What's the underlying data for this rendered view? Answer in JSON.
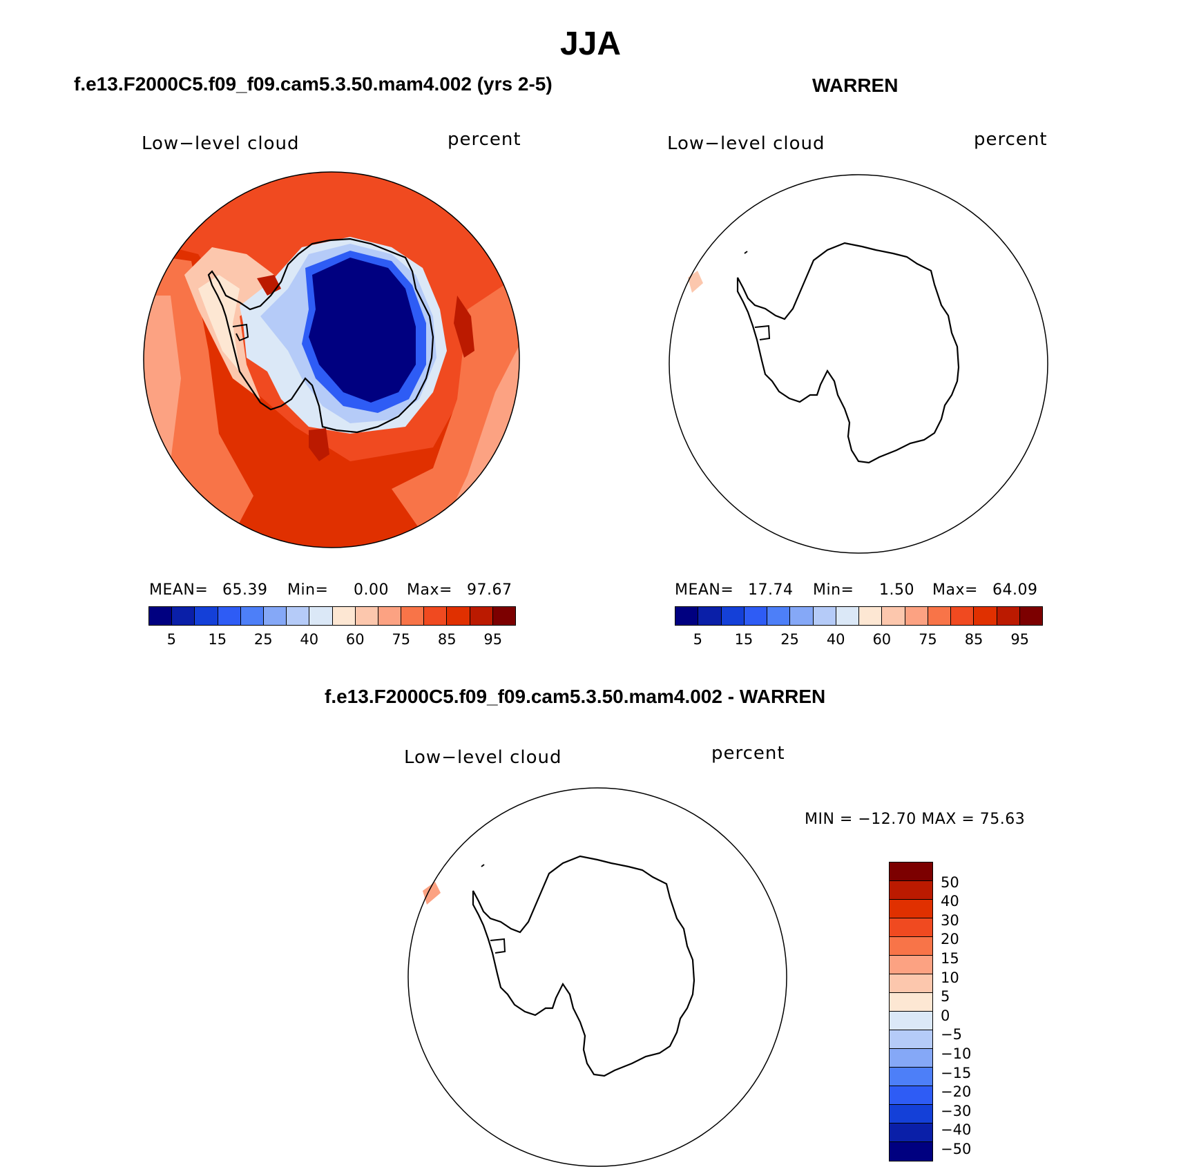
{
  "title": "JJA",
  "panels": {
    "model": {
      "title": "f.e13.F2000C5.f09_f09.cam5.3.50.mam4.002 (yrs 2-5)",
      "left_label": "Low−level cloud",
      "right_label": "percent",
      "stats": {
        "mean_label": "MEAN=",
        "mean": "65.39",
        "min_label": "Min=",
        "min": "0.00",
        "max_label": "Max=",
        "max": "97.67"
      }
    },
    "obs": {
      "title": "WARREN",
      "left_label": "Low−level cloud",
      "right_label": "percent",
      "stats": {
        "mean_label": "MEAN=",
        "mean": "17.74",
        "min_label": "Min=",
        "min": "1.50",
        "max_label": "Max=",
        "max": "64.09"
      }
    },
    "diff": {
      "title": "f.e13.F2000C5.f09_f09.cam5.3.50.mam4.002 - WARREN",
      "left_label": "Low−level cloud",
      "right_label": "percent",
      "minmax": "MIN = −12.70 MAX =   75.63"
    }
  },
  "colorbar_abs": {
    "colors": [
      "#000080",
      "#0a1fa8",
      "#1440d8",
      "#2e5cf5",
      "#4d7ff8",
      "#85a8f7",
      "#b5cbf8",
      "#dbe8f7",
      "#fde7d3",
      "#fcc7ad",
      "#fca282",
      "#f87448",
      "#f04a20",
      "#e03000",
      "#bb1a00",
      "#7c0000"
    ],
    "ticks": [
      "5",
      "15",
      "25",
      "40",
      "60",
      "75",
      "85",
      "95"
    ]
  },
  "colorbar_diff": {
    "colors": [
      "#7c0000",
      "#bb1a00",
      "#e03000",
      "#f04a20",
      "#f87448",
      "#fca282",
      "#fcc7ad",
      "#fde7d3",
      "#dbe8f7",
      "#b5cbf8",
      "#85a8f7",
      "#4d7ff8",
      "#2e5cf5",
      "#1440d8",
      "#0a1fa8",
      "#000080"
    ],
    "ticks": [
      "50",
      "40",
      "30",
      "20",
      "15",
      "10",
      "5",
      "0",
      "−5",
      "−10",
      "−15",
      "−20",
      "−30",
      "−40",
      "−50"
    ]
  },
  "map_colors": {
    "ocean_high": "#e03000",
    "ocean_mid": "#f04a20",
    "ocean_low": "#f87448",
    "ocean_light": "#fca282",
    "peninsula": "#fcc7ad",
    "ice_edge": "#dbe8f7",
    "interior": "#000080",
    "interior_ring": "#2e5cf5",
    "obs_spot": "#fcc7ad",
    "diff_spot": "#fca282"
  }
}
